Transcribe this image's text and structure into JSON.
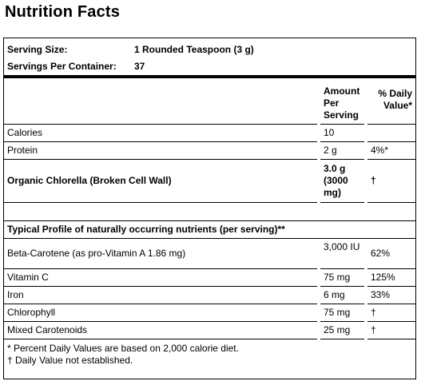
{
  "title": "Nutrition Facts",
  "serving": [
    {
      "label": "Serving Size:",
      "value": "1 Rounded Teaspoon (3 g)"
    },
    {
      "label": "Servings Per Container:",
      "value": "37"
    }
  ],
  "header": {
    "amount": "Amount Per Serving",
    "daily_value": "% Daily Value*"
  },
  "rows": [
    {
      "name": "Calories",
      "amount": "10"
    },
    {
      "name": "Protein",
      "amount": "2 g",
      "daily_value": "4%*"
    },
    {
      "name": "Organic Chlorella (Broken Cell Wall)",
      "amount": "3.0 g (3000 mg)",
      "daily_value": "†"
    }
  ],
  "profile": {
    "title": "Typical Profile of naturally occurring nutrients (per serving)**",
    "rows": [
      {
        "name": "Beta-Carotene (as pro-Vitamin A 1.86 mg)",
        "amount": "3,000 IU",
        "daily_value": "62%"
      },
      {
        "name": "Vitamin C",
        "amount": "75 mg",
        "daily_value": "125%"
      },
      {
        "name": "Iron",
        "amount": "6 mg",
        "daily_value": "33%"
      },
      {
        "name": "Chlorophyll",
        "amount": "75 mg",
        "daily_value": "†"
      },
      {
        "name": "Mixed Carotenoids",
        "amount": "25 mg",
        "daily_value": "†"
      }
    ]
  },
  "footnotes": [
    "* Percent Daily Values are based on 2,000 calorie diet.",
    "† Daily Value not established."
  ]
}
